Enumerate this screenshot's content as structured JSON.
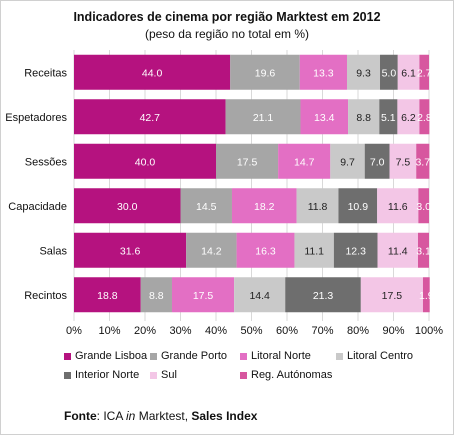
{
  "chart_data": {
    "type": "bar",
    "orientation": "horizontal",
    "stacked": "percent",
    "title": "Indicadores de cinema por região Marktest em 2012",
    "subtitle": "(peso da região no total  em %)",
    "categories": [
      "Receitas",
      "Espetadores",
      "Sessões",
      "Capacidade",
      "Salas",
      "Recintos"
    ],
    "series": [
      {
        "name": "Grande Lisboa",
        "color": "#b5127f",
        "values": [
          44.0,
          42.7,
          40.0,
          30.0,
          31.6,
          18.8
        ]
      },
      {
        "name": "Grande Porto",
        "color": "#a6a6a6",
        "values": [
          19.6,
          21.1,
          17.5,
          14.5,
          14.2,
          8.8
        ]
      },
      {
        "name": "Litoral Norte",
        "color": "#e36fc4",
        "values": [
          13.3,
          13.4,
          14.7,
          18.2,
          16.3,
          17.5
        ]
      },
      {
        "name": "Litoral Centro",
        "color": "#c9c9c9",
        "values": [
          9.3,
          8.8,
          9.7,
          11.8,
          11.1,
          14.4
        ]
      },
      {
        "name": "Interior Norte",
        "color": "#6e6e6e",
        "values": [
          5.0,
          5.1,
          7.0,
          10.9,
          12.3,
          21.3
        ]
      },
      {
        "name": "Sul",
        "color": "#f3c6e6",
        "values": [
          6.1,
          6.2,
          7.5,
          11.6,
          11.4,
          17.5
        ]
      },
      {
        "name": "Reg. Autónomas",
        "color": "#d7579f",
        "values": [
          2.7,
          2.8,
          3.7,
          3.0,
          3.1,
          1.9
        ]
      }
    ],
    "data_labels": [
      [
        "44.0",
        "19.6",
        "13.3",
        "9.3",
        "5.0",
        "6.1",
        "2.7"
      ],
      [
        "42.7",
        "21.1",
        "13.4",
        "8.8",
        "5.1",
        "6.2",
        "2.8"
      ],
      [
        "40.0",
        "17.5",
        "14.7",
        "9.7",
        "7.0",
        "7.5",
        "3.7"
      ],
      [
        "30.0",
        "14.5",
        "18.2",
        "11.8",
        "10.9",
        "11.6",
        "3.0"
      ],
      [
        "31.6",
        "14.2",
        "16.3",
        "11.1",
        "12.3",
        "11.4",
        "3.1"
      ],
      [
        "18.8",
        "8.8",
        "17.5",
        "14.4",
        "21.3",
        "17.5",
        "1.9"
      ]
    ],
    "xlim": [
      0,
      100
    ],
    "xticks": [
      "0%",
      "10%",
      "20%",
      "30%",
      "40%",
      "50%",
      "60%",
      "70%",
      "80%",
      "90%",
      "100%"
    ],
    "grid": true,
    "legend_position": "bottom"
  },
  "source": {
    "label": "Fonte",
    "text_before": ": ICA ",
    "italic": "in",
    "text_middle": " Marktest, ",
    "bold_end": "Sales Index"
  }
}
